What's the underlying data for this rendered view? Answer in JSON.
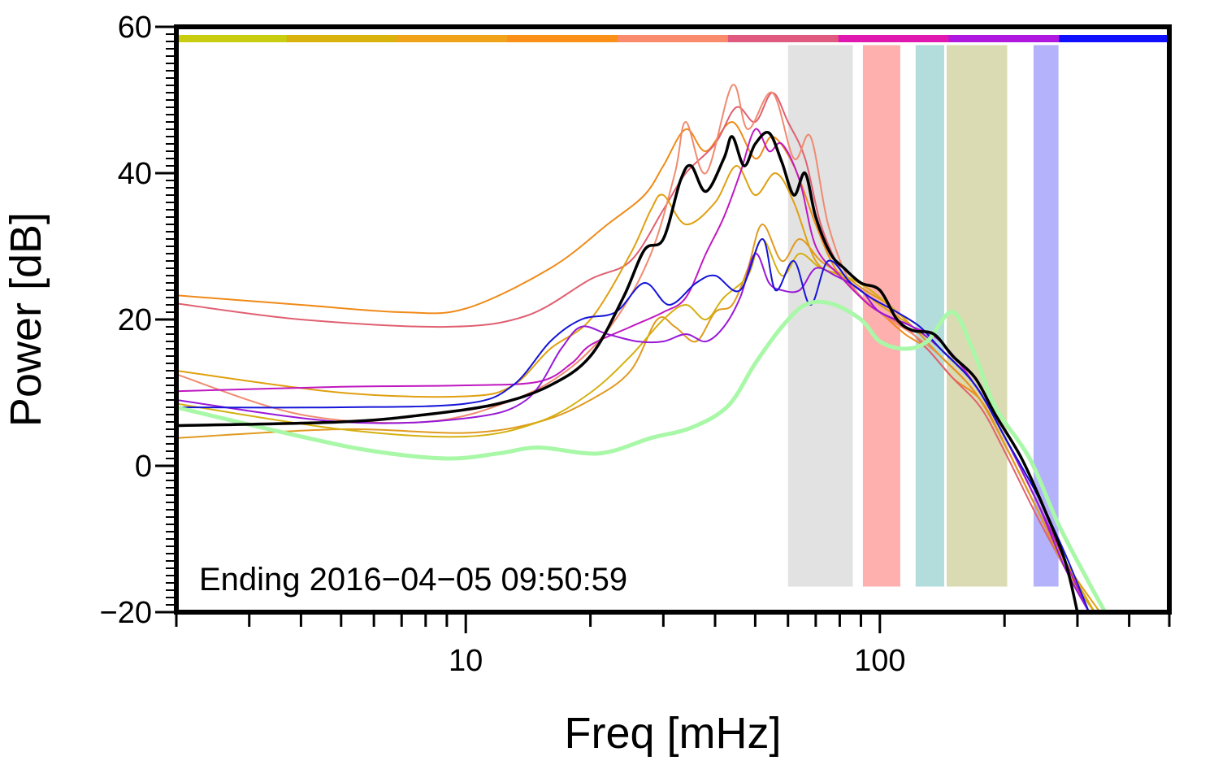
{
  "chart_data": {
    "type": "line",
    "xlabel": "Freq [mHz]",
    "ylabel": "Power [dB]",
    "x_scale": "log",
    "xlim": [
      2,
      500
    ],
    "ylim": [
      -20,
      60
    ],
    "x_ticks": [
      10,
      100
    ],
    "x_tick_labels": [
      "10",
      "100"
    ],
    "y_ticks": [
      60,
      40,
      20,
      0,
      -20
    ],
    "y_tick_labels": [
      "60",
      "40",
      "20",
      "0",
      "−20"
    ],
    "grid": false,
    "annotation": "Ending 2016−04−05 09:50:59",
    "top_color_bar": [
      "#c8cd10",
      "#d9b20e",
      "#f0a318",
      "#fa9018",
      "#f98a6c",
      "#e05a80",
      "#e018b0",
      "#b018e0",
      "#1010ff"
    ],
    "bands": [
      {
        "x0": 60,
        "x1": 86,
        "color": "#e2e2e2"
      },
      {
        "x0": 91,
        "x1": 112,
        "color": "#fdb0ad"
      },
      {
        "x0": 122,
        "x1": 143,
        "color": "#b3dcdd"
      },
      {
        "x0": 145,
        "x1": 203,
        "color": "#dadbb2"
      },
      {
        "x0": 235,
        "x1": 270,
        "color": "#b3b2fb"
      }
    ],
    "series": [
      {
        "color": "#f08a18",
        "width": 2,
        "points": [
          [
            2,
            23.3
          ],
          [
            4,
            22
          ],
          [
            7,
            21
          ],
          [
            10,
            21.5
          ],
          [
            16,
            27
          ],
          [
            22,
            33
          ],
          [
            27,
            37
          ],
          [
            30,
            41
          ],
          [
            34,
            46
          ],
          [
            38,
            43
          ],
          [
            44,
            47
          ],
          [
            50,
            42
          ],
          [
            55,
            45
          ],
          [
            62,
            41
          ],
          [
            70,
            33
          ],
          [
            78,
            27
          ],
          [
            90,
            23
          ],
          [
            100,
            21
          ],
          [
            115,
            18
          ],
          [
            130,
            16
          ],
          [
            150,
            12
          ],
          [
            175,
            9
          ],
          [
            200,
            3
          ],
          [
            240,
            -6
          ],
          [
            280,
            -13
          ],
          [
            330,
            -20
          ]
        ]
      },
      {
        "color": "#e06070",
        "width": 2,
        "points": [
          [
            2,
            22.2
          ],
          [
            4,
            20
          ],
          [
            9,
            19
          ],
          [
            14,
            20.5
          ],
          [
            20,
            25.5
          ],
          [
            25,
            28
          ],
          [
            30,
            35
          ],
          [
            34,
            40
          ],
          [
            40,
            44
          ],
          [
            45,
            49
          ],
          [
            50,
            47
          ],
          [
            55,
            51
          ],
          [
            60,
            47
          ],
          [
            66,
            42
          ],
          [
            72,
            33
          ],
          [
            80,
            27
          ],
          [
            90,
            23
          ],
          [
            100,
            21
          ],
          [
            115,
            19
          ],
          [
            130,
            16
          ],
          [
            150,
            12
          ],
          [
            175,
            8
          ],
          [
            200,
            2
          ],
          [
            240,
            -7
          ],
          [
            280,
            -14
          ],
          [
            320,
            -20
          ]
        ]
      },
      {
        "color": "#f08a70",
        "width": 2,
        "points": [
          [
            2,
            12.5
          ],
          [
            4,
            7
          ],
          [
            8,
            6
          ],
          [
            13,
            9
          ],
          [
            18,
            13.5
          ],
          [
            23,
            20
          ],
          [
            28,
            29
          ],
          [
            32,
            40
          ],
          [
            34,
            47
          ],
          [
            38,
            40
          ],
          [
            44,
            52
          ],
          [
            48,
            46
          ],
          [
            55,
            51
          ],
          [
            62,
            42
          ],
          [
            68,
            45
          ],
          [
            75,
            33
          ],
          [
            85,
            25
          ],
          [
            100,
            21
          ],
          [
            120,
            18
          ],
          [
            140,
            15
          ],
          [
            170,
            10
          ],
          [
            200,
            3
          ],
          [
            240,
            -6
          ],
          [
            290,
            -15
          ],
          [
            320,
            -20
          ]
        ]
      },
      {
        "color": "#e0a010",
        "width": 2,
        "points": [
          [
            2,
            13
          ],
          [
            5,
            10
          ],
          [
            10,
            9.5
          ],
          [
            13,
            11
          ],
          [
            16,
            16
          ],
          [
            20,
            20
          ],
          [
            25,
            29
          ],
          [
            28,
            35
          ],
          [
            30,
            37
          ],
          [
            34,
            33
          ],
          [
            40,
            36
          ],
          [
            45,
            41
          ],
          [
            50,
            37
          ],
          [
            56,
            40
          ],
          [
            62,
            36
          ],
          [
            70,
            28
          ],
          [
            80,
            26
          ],
          [
            90,
            24
          ],
          [
            100,
            22
          ],
          [
            120,
            19
          ],
          [
            140,
            16
          ],
          [
            170,
            11
          ],
          [
            200,
            4
          ],
          [
            240,
            -5
          ],
          [
            280,
            -13
          ],
          [
            340,
            -20
          ]
        ]
      },
      {
        "color": "#e09a20",
        "width": 2,
        "points": [
          [
            2,
            3.8
          ],
          [
            5,
            5
          ],
          [
            10,
            4.5
          ],
          [
            15,
            6
          ],
          [
            20,
            9
          ],
          [
            25,
            13
          ],
          [
            29,
            20
          ],
          [
            32,
            19
          ],
          [
            36,
            17
          ],
          [
            40,
            21
          ],
          [
            44,
            22
          ],
          [
            48,
            27
          ],
          [
            52,
            33
          ],
          [
            58,
            28
          ],
          [
            64,
            31
          ],
          [
            72,
            28
          ],
          [
            82,
            26
          ],
          [
            92,
            24
          ],
          [
            105,
            22
          ],
          [
            120,
            19
          ],
          [
            140,
            15
          ],
          [
            170,
            10
          ],
          [
            200,
            3
          ],
          [
            240,
            -6
          ],
          [
            280,
            -14
          ],
          [
            330,
            -20
          ]
        ]
      },
      {
        "color": "#d4b010",
        "width": 2,
        "points": [
          [
            2,
            8.5
          ],
          [
            5,
            5
          ],
          [
            10,
            4
          ],
          [
            15,
            6
          ],
          [
            20,
            10
          ],
          [
            25,
            15
          ],
          [
            30,
            20
          ],
          [
            34,
            22
          ],
          [
            38,
            20
          ],
          [
            42,
            23
          ],
          [
            48,
            26
          ],
          [
            52,
            31
          ],
          [
            58,
            26
          ],
          [
            64,
            29
          ],
          [
            72,
            27
          ],
          [
            82,
            26
          ],
          [
            95,
            24
          ],
          [
            110,
            21
          ],
          [
            125,
            19
          ],
          [
            140,
            16
          ],
          [
            170,
            11
          ],
          [
            200,
            4
          ],
          [
            240,
            -5
          ],
          [
            280,
            -13
          ],
          [
            330,
            -20
          ]
        ]
      },
      {
        "color": "#c018c0",
        "width": 2,
        "points": [
          [
            2,
            10.2
          ],
          [
            5,
            10.8
          ],
          [
            10,
            11
          ],
          [
            15,
            11.5
          ],
          [
            18,
            14
          ],
          [
            20,
            16.5
          ],
          [
            25,
            19
          ],
          [
            30,
            21
          ],
          [
            34,
            23
          ],
          [
            38,
            29
          ],
          [
            42,
            34
          ],
          [
            46,
            40
          ],
          [
            50,
            46
          ],
          [
            54,
            43
          ],
          [
            58,
            44
          ],
          [
            64,
            39
          ],
          [
            70,
            30
          ],
          [
            80,
            26
          ],
          [
            90,
            23
          ],
          [
            100,
            21
          ],
          [
            120,
            19
          ],
          [
            140,
            17
          ],
          [
            170,
            11
          ],
          [
            200,
            4
          ],
          [
            240,
            -5
          ],
          [
            280,
            -13
          ],
          [
            320,
            -20
          ]
        ]
      },
      {
        "color": "#9818d8",
        "width": 2,
        "points": [
          [
            2,
            9
          ],
          [
            5,
            6
          ],
          [
            10,
            6.5
          ],
          [
            14,
            9
          ],
          [
            17,
            16
          ],
          [
            19,
            19
          ],
          [
            22,
            18
          ],
          [
            26,
            17
          ],
          [
            30,
            17
          ],
          [
            34,
            18
          ],
          [
            38,
            17
          ],
          [
            42,
            19
          ],
          [
            46,
            23
          ],
          [
            50,
            29
          ],
          [
            54,
            25
          ],
          [
            58,
            24
          ],
          [
            64,
            24
          ],
          [
            70,
            27
          ],
          [
            78,
            26
          ],
          [
            90,
            24
          ],
          [
            100,
            21
          ],
          [
            120,
            19
          ],
          [
            140,
            16
          ],
          [
            170,
            11
          ],
          [
            200,
            4
          ],
          [
            240,
            -5
          ],
          [
            280,
            -14
          ],
          [
            320,
            -20
          ]
        ]
      },
      {
        "color": "#1414d8",
        "width": 2,
        "points": [
          [
            2,
            8
          ],
          [
            5,
            8
          ],
          [
            10,
            8.5
          ],
          [
            13,
            11
          ],
          [
            16,
            17
          ],
          [
            19,
            20
          ],
          [
            23,
            21
          ],
          [
            27,
            25
          ],
          [
            31,
            22
          ],
          [
            36,
            25
          ],
          [
            40,
            26
          ],
          [
            46,
            24
          ],
          [
            52,
            31
          ],
          [
            56,
            24
          ],
          [
            62,
            28
          ],
          [
            68,
            22
          ],
          [
            75,
            28
          ],
          [
            85,
            25
          ],
          [
            95,
            23
          ],
          [
            110,
            21
          ],
          [
            125,
            19
          ],
          [
            140,
            16
          ],
          [
            170,
            11
          ],
          [
            200,
            4
          ],
          [
            240,
            -4
          ],
          [
            280,
            -12
          ],
          [
            320,
            -20
          ]
        ]
      },
      {
        "color": "#a8f8a8",
        "width": 5,
        "points": [
          [
            2,
            8
          ],
          [
            4,
            4
          ],
          [
            6,
            2
          ],
          [
            9,
            1
          ],
          [
            12,
            1.7
          ],
          [
            15,
            2.5
          ],
          [
            21,
            1.7
          ],
          [
            28,
            3.8
          ],
          [
            35,
            5.2
          ],
          [
            43,
            8.2
          ],
          [
            50,
            14
          ],
          [
            58,
            19
          ],
          [
            66,
            22
          ],
          [
            76,
            22.2
          ],
          [
            90,
            20
          ],
          [
            100,
            17
          ],
          [
            115,
            16
          ],
          [
            130,
            17
          ],
          [
            150,
            21
          ],
          [
            170,
            15
          ],
          [
            190,
            8
          ],
          [
            230,
            1
          ],
          [
            270,
            -8
          ],
          [
            320,
            -16
          ],
          [
            350,
            -20
          ]
        ]
      },
      {
        "color": "#000000",
        "width": 3.5,
        "points": [
          [
            2,
            5.5
          ],
          [
            5,
            6
          ],
          [
            8,
            7
          ],
          [
            12,
            8.5
          ],
          [
            16,
            11
          ],
          [
            20,
            15
          ],
          [
            24,
            23
          ],
          [
            27,
            29.5
          ],
          [
            30,
            31
          ],
          [
            33,
            39
          ],
          [
            35,
            41
          ],
          [
            38,
            37.5
          ],
          [
            42,
            42
          ],
          [
            44,
            45
          ],
          [
            47,
            41
          ],
          [
            50,
            44
          ],
          [
            54,
            45.5
          ],
          [
            58,
            41.5
          ],
          [
            62,
            37
          ],
          [
            66,
            40
          ],
          [
            70,
            34
          ],
          [
            76,
            29
          ],
          [
            82,
            27
          ],
          [
            90,
            25
          ],
          [
            100,
            24
          ],
          [
            110,
            20
          ],
          [
            120,
            18.5
          ],
          [
            135,
            18
          ],
          [
            150,
            15
          ],
          [
            170,
            12
          ],
          [
            190,
            7
          ],
          [
            220,
            1
          ],
          [
            250,
            -6
          ],
          [
            280,
            -13
          ],
          [
            300,
            -20
          ]
        ]
      }
    ]
  }
}
